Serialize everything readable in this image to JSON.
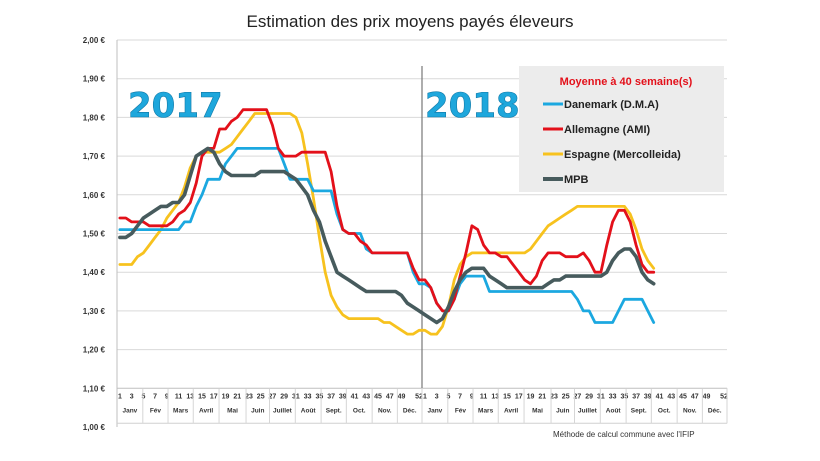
{
  "chart_data": {
    "type": "line",
    "title": "Estimation des prix moyens payés éleveurs",
    "xlabel": "",
    "ylabel": "",
    "ylim": [
      1.0,
      2.0
    ],
    "y_ticks": [
      "1,00 €",
      "1,10 €",
      "1,20 €",
      "1,30 €",
      "1,40 €",
      "1,50 €",
      "1,60 €",
      "1,70 €",
      "1,80 €",
      "1,90 €",
      "2,00 €"
    ],
    "grid": true,
    "years": [
      "2017",
      "2018"
    ],
    "x_week_ticks": {
      "2017": [
        "1",
        "3",
        "5",
        "7",
        "9",
        "11",
        "13",
        "15",
        "17",
        "19",
        "21",
        "23",
        "25",
        "27",
        "29",
        "31",
        "33",
        "35",
        "37",
        "39",
        "41",
        "43",
        "45",
        "47",
        "49",
        "52"
      ],
      "2018": [
        "1",
        "3",
        "5",
        "7",
        "9",
        "11",
        "13",
        "15",
        "17",
        "19",
        "21",
        "23",
        "25",
        "27",
        "29",
        "31",
        "33",
        "35",
        "37",
        "39",
        "41",
        "43",
        "45",
        "47",
        "49",
        "52"
      ]
    },
    "months": [
      "Janv",
      "Fév",
      "Mars",
      "Avril",
      "Mai",
      "Juin",
      "Juillet",
      "Août",
      "Sept.",
      "Oct.",
      "Nov.",
      "Déc."
    ],
    "legend": {
      "title": "Moyenne à  40 semaine(s)",
      "placement": "top-right"
    },
    "note": "Méthode de calcul commune avec l'IFIP",
    "series": [
      {
        "name": "Danemark (D.M.A)",
        "color": "#1ba8e0",
        "values_2017": [
          1.51,
          1.51,
          1.51,
          1.51,
          1.51,
          1.51,
          1.51,
          1.51,
          1.51,
          1.51,
          1.51,
          1.53,
          1.53,
          1.57,
          1.6,
          1.64,
          1.64,
          1.64,
          1.68,
          1.7,
          1.72,
          1.72,
          1.72,
          1.72,
          1.72,
          1.72,
          1.72,
          1.72,
          1.68,
          1.64,
          1.64,
          1.64,
          1.64,
          1.61,
          1.61,
          1.61,
          1.61,
          1.55,
          1.51,
          1.5,
          1.5,
          1.5,
          1.46,
          1.45,
          1.45,
          1.45,
          1.45,
          1.45,
          1.45,
          1.45,
          1.4,
          1.37
        ],
        "values_2018": [
          1.37,
          1.36,
          1.32,
          1.3,
          1.3,
          1.33,
          1.37,
          1.39,
          1.39,
          1.39,
          1.39,
          1.35,
          1.35,
          1.35,
          1.35,
          1.35,
          1.35,
          1.35,
          1.35,
          1.35,
          1.35,
          1.35,
          1.35,
          1.35,
          1.35,
          1.35,
          1.33,
          1.3,
          1.3,
          1.27,
          1.27,
          1.27,
          1.27,
          1.3,
          1.33,
          1.33,
          1.33,
          1.33,
          1.3,
          1.27
        ]
      },
      {
        "name": "Allemagne (AMI)",
        "color": "#e3101a",
        "values_2017": [
          1.54,
          1.54,
          1.53,
          1.53,
          1.53,
          1.52,
          1.52,
          1.52,
          1.52,
          1.53,
          1.55,
          1.56,
          1.58,
          1.63,
          1.7,
          1.72,
          1.72,
          1.77,
          1.77,
          1.79,
          1.8,
          1.82,
          1.82,
          1.82,
          1.82,
          1.82,
          1.78,
          1.72,
          1.7,
          1.7,
          1.7,
          1.71,
          1.71,
          1.71,
          1.71,
          1.71,
          1.66,
          1.57,
          1.51,
          1.5,
          1.5,
          1.48,
          1.47,
          1.45,
          1.45,
          1.45,
          1.45,
          1.45,
          1.45,
          1.45,
          1.41,
          1.38
        ],
        "values_2018": [
          1.38,
          1.36,
          1.32,
          1.3,
          1.3,
          1.33,
          1.39,
          1.45,
          1.52,
          1.51,
          1.47,
          1.45,
          1.45,
          1.44,
          1.44,
          1.42,
          1.4,
          1.38,
          1.37,
          1.39,
          1.43,
          1.45,
          1.45,
          1.45,
          1.44,
          1.44,
          1.44,
          1.45,
          1.43,
          1.4,
          1.4,
          1.47,
          1.53,
          1.56,
          1.56,
          1.53,
          1.47,
          1.42,
          1.4,
          1.4
        ]
      },
      {
        "name": "Espagne (Mercolleida)",
        "color": "#f7c21e",
        "values_2017": [
          1.42,
          1.42,
          1.42,
          1.44,
          1.45,
          1.47,
          1.49,
          1.51,
          1.54,
          1.56,
          1.58,
          1.62,
          1.67,
          1.7,
          1.71,
          1.71,
          1.71,
          1.71,
          1.72,
          1.73,
          1.75,
          1.77,
          1.79,
          1.81,
          1.81,
          1.81,
          1.81,
          1.81,
          1.81,
          1.81,
          1.8,
          1.76,
          1.68,
          1.59,
          1.49,
          1.4,
          1.34,
          1.31,
          1.29,
          1.28,
          1.28,
          1.28,
          1.28,
          1.28,
          1.28,
          1.27,
          1.27,
          1.26,
          1.25,
          1.24,
          1.24,
          1.25
        ],
        "values_2018": [
          1.25,
          1.24,
          1.24,
          1.26,
          1.31,
          1.38,
          1.42,
          1.44,
          1.45,
          1.45,
          1.45,
          1.45,
          1.45,
          1.45,
          1.45,
          1.45,
          1.45,
          1.45,
          1.46,
          1.48,
          1.5,
          1.52,
          1.53,
          1.54,
          1.55,
          1.56,
          1.57,
          1.57,
          1.57,
          1.57,
          1.57,
          1.57,
          1.57,
          1.57,
          1.57,
          1.55,
          1.51,
          1.46,
          1.43,
          1.41
        ]
      },
      {
        "name": "MPB",
        "color": "#475b5d",
        "values_2017": [
          1.49,
          1.49,
          1.5,
          1.52,
          1.54,
          1.55,
          1.56,
          1.57,
          1.57,
          1.58,
          1.58,
          1.6,
          1.65,
          1.7,
          1.71,
          1.72,
          1.71,
          1.68,
          1.66,
          1.65,
          1.65,
          1.65,
          1.65,
          1.65,
          1.66,
          1.66,
          1.66,
          1.66,
          1.66,
          1.65,
          1.64,
          1.62,
          1.6,
          1.56,
          1.53,
          1.48,
          1.44,
          1.4,
          1.39,
          1.38,
          1.37,
          1.36,
          1.35,
          1.35,
          1.35,
          1.35,
          1.35,
          1.35,
          1.34,
          1.32,
          1.31,
          1.3
        ],
        "values_2018": [
          1.29,
          1.28,
          1.27,
          1.28,
          1.31,
          1.35,
          1.38,
          1.4,
          1.41,
          1.41,
          1.41,
          1.39,
          1.38,
          1.37,
          1.36,
          1.36,
          1.36,
          1.36,
          1.36,
          1.36,
          1.36,
          1.37,
          1.38,
          1.38,
          1.39,
          1.39,
          1.39,
          1.39,
          1.39,
          1.39,
          1.39,
          1.4,
          1.43,
          1.45,
          1.46,
          1.46,
          1.44,
          1.4,
          1.38,
          1.37
        ]
      }
    ]
  }
}
